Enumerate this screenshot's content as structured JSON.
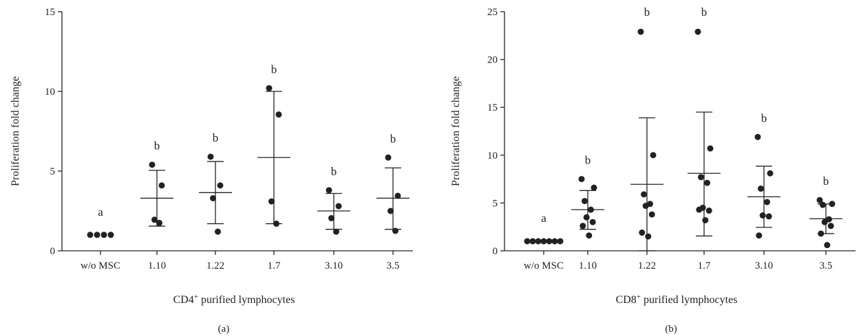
{
  "chart_data": [
    {
      "type": "scatter",
      "panel_label": "(a)",
      "xlabel_main": "CD4",
      "xlabel_sup": "+",
      "xlabel_rest": " purified lymphocytes",
      "ylabel": "Proliferation fold change",
      "ylim": [
        0,
        15
      ],
      "yticks": [
        0,
        5,
        10,
        15
      ],
      "categories": [
        "w/o MSC",
        "1.10",
        "1.22",
        "1.7",
        "3.10",
        "3.5"
      ],
      "letters": [
        "a",
        "b",
        "b",
        "b",
        "b",
        "b"
      ],
      "groups": [
        {
          "points": [
            1.0,
            1.0,
            1.0,
            1.0
          ],
          "mean": 1.0,
          "lower": 1.0,
          "upper": 1.0
        },
        {
          "points": [
            5.4,
            4.1,
            1.95,
            1.75
          ],
          "mean": 3.3,
          "lower": 1.55,
          "upper": 5.05
        },
        {
          "points": [
            5.9,
            4.1,
            3.3,
            1.2
          ],
          "mean": 3.65,
          "lower": 1.7,
          "upper": 5.6
        },
        {
          "points": [
            10.2,
            8.55,
            3.1,
            1.7
          ],
          "mean": 5.85,
          "lower": 1.7,
          "upper": 10.0
        },
        {
          "points": [
            3.8,
            2.8,
            2.05,
            1.2
          ],
          "mean": 2.5,
          "lower": 1.35,
          "upper": 3.6
        },
        {
          "points": [
            5.85,
            3.45,
            2.5,
            1.25
          ],
          "mean": 3.3,
          "lower": 1.35,
          "upper": 5.2
        }
      ]
    },
    {
      "type": "scatter",
      "panel_label": "(b)",
      "xlabel_main": "CD8",
      "xlabel_sup": "+",
      "xlabel_rest": " purified lymphocytes",
      "ylabel": "Proliferation fold change",
      "ylim": [
        0,
        25
      ],
      "yticks": [
        0,
        5,
        10,
        15,
        20,
        25
      ],
      "categories": [
        "w/o MSC",
        "1.10",
        "1.22",
        "1.7",
        "3.10",
        "3.5"
      ],
      "letters": [
        "a",
        "b",
        "b",
        "b",
        "b",
        "b"
      ],
      "groups": [
        {
          "points": [
            1.0,
            1.0,
            1.0,
            1.0,
            1.0,
            1.0,
            1.0
          ],
          "mean": 1.0,
          "lower": 1.0,
          "upper": 1.0
        },
        {
          "points": [
            7.5,
            6.6,
            5.2,
            4.3,
            3.5,
            3.0,
            2.6,
            1.6
          ],
          "mean": 4.3,
          "lower": 2.25,
          "upper": 6.3
        },
        {
          "points": [
            22.9,
            10.0,
            5.9,
            4.9,
            4.7,
            3.8,
            1.9,
            1.5
          ],
          "mean": 6.95,
          "lower": 0.0,
          "upper": 13.9
        },
        {
          "points": [
            22.9,
            10.7,
            7.7,
            7.1,
            4.5,
            4.2,
            4.3,
            3.2
          ],
          "mean": 8.1,
          "lower": 1.55,
          "upper": 14.5
        },
        {
          "points": [
            11.9,
            8.1,
            6.5,
            5.1,
            3.7,
            3.6,
            1.6
          ],
          "mean": 5.65,
          "lower": 2.45,
          "upper": 8.85
        },
        {
          "points": [
            5.3,
            4.9,
            4.8,
            3.3,
            3.0,
            2.6,
            1.8,
            0.6
          ],
          "mean": 3.35,
          "lower": 1.8,
          "upper": 4.9
        }
      ]
    }
  ]
}
